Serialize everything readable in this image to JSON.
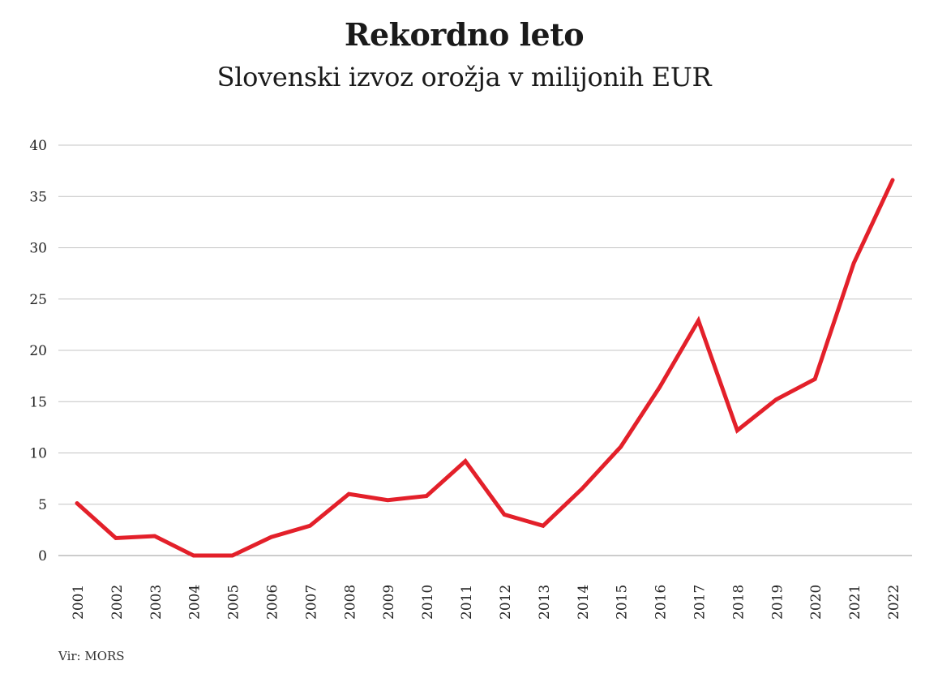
{
  "chart_data": {
    "type": "line",
    "title": "Rekordno leto",
    "subtitle": "Slovenski izvoz orožja v milijonih EUR",
    "xlabel": "",
    "ylabel": "",
    "ylim": [
      0,
      40
    ],
    "yticks": [
      0,
      5,
      10,
      15,
      20,
      25,
      30,
      35,
      40
    ],
    "grid": true,
    "categories": [
      "2001",
      "2002",
      "2003",
      "2004",
      "2005",
      "2006",
      "2007",
      "2008",
      "2009",
      "2010",
      "2011",
      "2012",
      "2013",
      "2014",
      "2015",
      "2016",
      "2017",
      "2018",
      "2019",
      "2020",
      "2021",
      "2022"
    ],
    "series": [
      {
        "name": "Izvoz orožja",
        "color": "#e3202a",
        "values": [
          5.1,
          1.7,
          1.9,
          0.0,
          0.0,
          1.8,
          2.9,
          6.0,
          5.4,
          5.8,
          9.2,
          4.0,
          2.9,
          6.5,
          10.6,
          16.4,
          22.9,
          12.2,
          15.2,
          17.2,
          28.5,
          36.6
        ]
      }
    ],
    "source": "Vir: MORS"
  }
}
